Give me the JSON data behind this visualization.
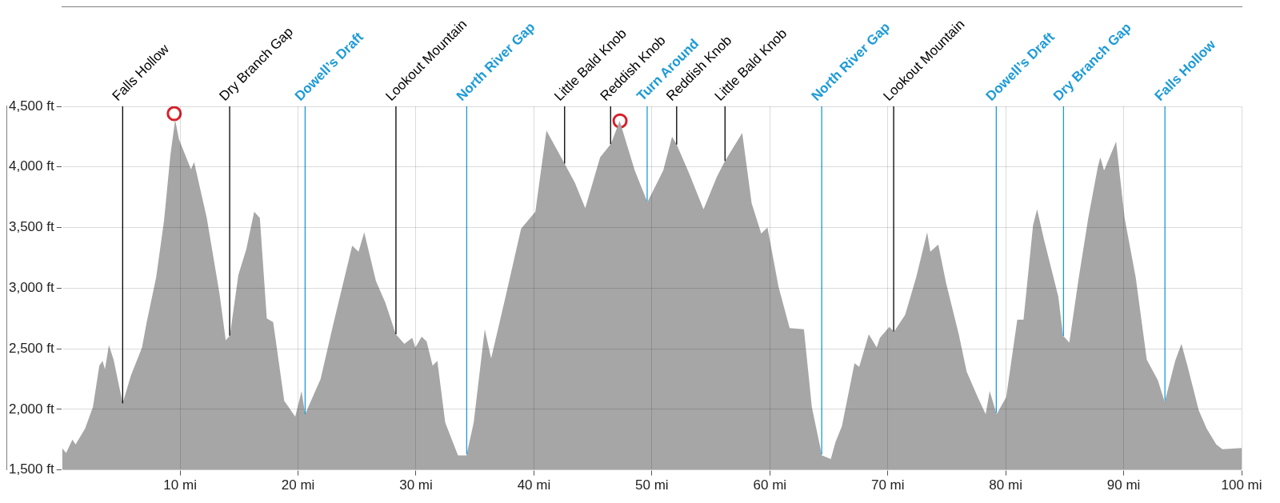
{
  "chart_data": {
    "type": "area",
    "xlim": [
      0,
      100
    ],
    "ylim": [
      1500,
      4500
    ],
    "xticks": [
      {
        "value": 10,
        "label": "10 mi"
      },
      {
        "value": 20,
        "label": "20 mi"
      },
      {
        "value": 30,
        "label": "30 mi"
      },
      {
        "value": 40,
        "label": "40 mi"
      },
      {
        "value": 50,
        "label": "50 mi"
      },
      {
        "value": 60,
        "label": "60 mi"
      },
      {
        "value": 70,
        "label": "70 mi"
      },
      {
        "value": 80,
        "label": "80 mi"
      },
      {
        "value": 90,
        "label": "90 mi"
      },
      {
        "value": 100,
        "label": "100 mi"
      }
    ],
    "yticks": [
      {
        "value": 1500,
        "label": "1,500 ft"
      },
      {
        "value": 2000,
        "label": "2,000 ft"
      },
      {
        "value": 2500,
        "label": "2,500 ft"
      },
      {
        "value": 3000,
        "label": "3,000 ft"
      },
      {
        "value": 3500,
        "label": "3,500 ft"
      },
      {
        "value": 4000,
        "label": "4,000 ft"
      },
      {
        "value": 4500,
        "label": "4,500 ft"
      }
    ],
    "grid": true,
    "legend": false,
    "series": [
      {
        "type": "area",
        "color": "#a6a6a6",
        "x": [
          0,
          0.33,
          0.87,
          1.14,
          1.94,
          2.61,
          3.15,
          3.42,
          3.63,
          3.96,
          4.36,
          5.13,
          5.83,
          6.77,
          7.17,
          7.97,
          8.64,
          9.18,
          9.58,
          9.9,
          10.92,
          11.19,
          12.26,
          13.33,
          13.87,
          14.22,
          14.94,
          15.61,
          16.28,
          16.76,
          17.35,
          17.89,
          18.83,
          19.76,
          20.3,
          20.6,
          21.91,
          22.98,
          24.59,
          25.13,
          25.61,
          26.6,
          27.4,
          28.29,
          29.01,
          29.68,
          29.95,
          30.48,
          30.9,
          31.41,
          31.81,
          32.48,
          33.56,
          34.28,
          34.89,
          35.83,
          36.37,
          37.57,
          38.91,
          40.12,
          41.06,
          42.53,
          43.47,
          44.35,
          45.61,
          46.52,
          47.27,
          48.55,
          49.62,
          50.96,
          51.71,
          52.08,
          53.1,
          54.38,
          55.51,
          56.2,
          57.66,
          58.46,
          59.27,
          59.8,
          60.74,
          61.68,
          62.89,
          63.56,
          64.42,
          65.17,
          65.57,
          66.11,
          67.18,
          67.58,
          68.39,
          69.06,
          69.33,
          70.13,
          70.53,
          71.47,
          72.41,
          73.34,
          73.61,
          74.28,
          74.95,
          76.02,
          76.69,
          77.63,
          78.3,
          78.64,
          79.23,
          80.04,
          80.98,
          81.51,
          82.32,
          82.66,
          83.25,
          84.46,
          84.86,
          85.39,
          86.2,
          87.0,
          87.81,
          88.02,
          88.34,
          89.36,
          90.08,
          91.02,
          91.96,
          92.9,
          93.48,
          94.37,
          94.9,
          95.43,
          96.37,
          97.04,
          97.85,
          98.38,
          100
        ],
        "values": [
          1680,
          1640,
          1750,
          1710,
          1840,
          2020,
          2360,
          2400,
          2330,
          2530,
          2410,
          2050,
          2280,
          2510,
          2720,
          3090,
          3560,
          4100,
          4390,
          4230,
          3980,
          4040,
          3580,
          2960,
          2570,
          2610,
          3110,
          3320,
          3630,
          3580,
          2750,
          2720,
          2070,
          1940,
          2150,
          1960,
          2250,
          2700,
          3350,
          3300,
          3460,
          3060,
          2880,
          2620,
          2540,
          2590,
          2510,
          2600,
          2560,
          2360,
          2400,
          1890,
          1620,
          1620,
          1890,
          2660,
          2420,
          2920,
          3490,
          3630,
          4300,
          4040,
          3870,
          3660,
          4080,
          4190,
          4380,
          3970,
          3710,
          3970,
          4250,
          4190,
          3960,
          3650,
          3920,
          4050,
          4280,
          3700,
          3450,
          3500,
          3010,
          2670,
          2660,
          2020,
          1620,
          1590,
          1730,
          1860,
          2380,
          2350,
          2620,
          2510,
          2590,
          2680,
          2640,
          2780,
          3090,
          3460,
          3300,
          3360,
          3040,
          2620,
          2310,
          2100,
          1960,
          2150,
          1960,
          2100,
          2740,
          2740,
          3520,
          3650,
          3400,
          2930,
          2610,
          2550,
          3090,
          3580,
          4000,
          4080,
          3970,
          4210,
          3580,
          3090,
          2410,
          2240,
          2060,
          2400,
          2540,
          2350,
          1990,
          1840,
          1710,
          1670,
          1680
        ]
      },
      {
        "type": "scatter",
        "color": "#d7202a",
        "marker": "circle",
        "x": [
          9.5,
          47.3
        ],
        "values": [
          4440,
          4380
        ]
      }
    ],
    "ref_lines": [
      {
        "axis": "x",
        "value": 5.13,
        "label": "Falls Hollow",
        "color": "#000000"
      },
      {
        "axis": "x",
        "value": 14.2,
        "label": "Dry Branch Gap",
        "color": "#000000"
      },
      {
        "axis": "x",
        "value": 20.6,
        "label": "Dowell’s Draft",
        "color": "#1e9bd7"
      },
      {
        "axis": "x",
        "value": 28.3,
        "label": "Lookout Mountain",
        "color": "#000000"
      },
      {
        "axis": "x",
        "value": 34.3,
        "label": "North River Gap",
        "color": "#1e9bd7"
      },
      {
        "axis": "x",
        "value": 42.6,
        "label": "Little Bald Knob",
        "color": "#000000"
      },
      {
        "axis": "x",
        "value": 46.5,
        "label": "Reddish Knob",
        "color": "#000000"
      },
      {
        "axis": "x",
        "value": 49.6,
        "label": "Turn Around",
        "color": "#1e9bd7"
      },
      {
        "axis": "x",
        "value": 52.1,
        "label": "Reddish Knob",
        "color": "#000000"
      },
      {
        "axis": "x",
        "value": 56.2,
        "label": "Little Bald Knob",
        "color": "#000000"
      },
      {
        "axis": "x",
        "value": 64.4,
        "label": "North River Gap",
        "color": "#1e9bd7"
      },
      {
        "axis": "x",
        "value": 70.5,
        "label": "Lookout Mountain",
        "color": "#000000"
      },
      {
        "axis": "x",
        "value": 79.2,
        "label": "Dowell’s Draft",
        "color": "#1e9bd7"
      },
      {
        "axis": "x",
        "value": 84.9,
        "label": "Dry Branch Gap",
        "color": "#1e9bd7"
      },
      {
        "axis": "x",
        "value": 93.5,
        "label": "Falls Hollow",
        "color": "#1e9bd7"
      }
    ]
  }
}
